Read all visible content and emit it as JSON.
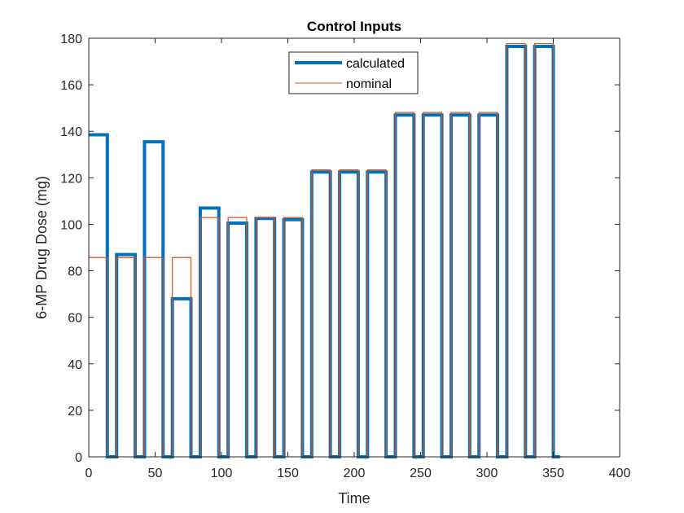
{
  "chart_data": {
    "type": "line",
    "title": "Control Inputs",
    "xlabel": "Time",
    "ylabel": "6-MP Drug Dose (mg)",
    "xlim": [
      0,
      400
    ],
    "ylim": [
      0,
      180
    ],
    "xticks": [
      0,
      50,
      100,
      150,
      200,
      250,
      300,
      350,
      400
    ],
    "yticks": [
      0,
      20,
      40,
      60,
      80,
      100,
      120,
      140,
      160,
      180
    ],
    "xtick_labels": [
      "0",
      "50",
      "100",
      "150",
      "200",
      "250",
      "300",
      "350",
      "400"
    ],
    "ytick_labels": [
      "0",
      "20",
      "40",
      "60",
      "80",
      "100",
      "120",
      "140",
      "160",
      "180"
    ],
    "grid": false,
    "legend_position": "top-center",
    "series": [
      {
        "name": "calculated",
        "color": "#0072BD",
        "pulses": [
          {
            "start": 0,
            "end": 14,
            "dose": 138.5
          },
          {
            "start": 21,
            "end": 35,
            "dose": 87
          },
          {
            "start": 42,
            "end": 56,
            "dose": 135.5
          },
          {
            "start": 63,
            "end": 77,
            "dose": 68
          },
          {
            "start": 84,
            "end": 98,
            "dose": 107
          },
          {
            "start": 105,
            "end": 119,
            "dose": 100.5
          },
          {
            "start": 126,
            "end": 140,
            "dose": 102.5
          },
          {
            "start": 147,
            "end": 161,
            "dose": 102
          },
          {
            "start": 168,
            "end": 182,
            "dose": 122.5
          },
          {
            "start": 189,
            "end": 203,
            "dose": 122.5
          },
          {
            "start": 210,
            "end": 224,
            "dose": 122.5
          },
          {
            "start": 231,
            "end": 245,
            "dose": 147
          },
          {
            "start": 252,
            "end": 266,
            "dose": 147
          },
          {
            "start": 273,
            "end": 287,
            "dose": 147
          },
          {
            "start": 294,
            "end": 308,
            "dose": 147
          },
          {
            "start": 315,
            "end": 329,
            "dose": 176.5
          },
          {
            "start": 336,
            "end": 350,
            "dose": 176.5
          }
        ],
        "end_time": 355
      },
      {
        "name": "nominal",
        "color": "#D95319",
        "pulses": [
          {
            "start": 0,
            "end": 14,
            "dose": 85.7
          },
          {
            "start": 21,
            "end": 35,
            "dose": 85.7
          },
          {
            "start": 42,
            "end": 56,
            "dose": 85.7
          },
          {
            "start": 63,
            "end": 77,
            "dose": 85.7
          },
          {
            "start": 84,
            "end": 98,
            "dose": 102.9
          },
          {
            "start": 105,
            "end": 119,
            "dose": 102.9
          },
          {
            "start": 126,
            "end": 140,
            "dose": 102.9
          },
          {
            "start": 147,
            "end": 161,
            "dose": 102.9
          },
          {
            "start": 168,
            "end": 182,
            "dose": 123.4
          },
          {
            "start": 189,
            "end": 203,
            "dose": 123.4
          },
          {
            "start": 210,
            "end": 224,
            "dose": 123.4
          },
          {
            "start": 231,
            "end": 245,
            "dose": 148.1
          },
          {
            "start": 252,
            "end": 266,
            "dose": 148.1
          },
          {
            "start": 273,
            "end": 287,
            "dose": 148.1
          },
          {
            "start": 294,
            "end": 308,
            "dose": 148.1
          },
          {
            "start": 315,
            "end": 329,
            "dose": 177.7
          },
          {
            "start": 336,
            "end": 350,
            "dose": 177.7
          }
        ],
        "end_time": 357
      }
    ]
  }
}
